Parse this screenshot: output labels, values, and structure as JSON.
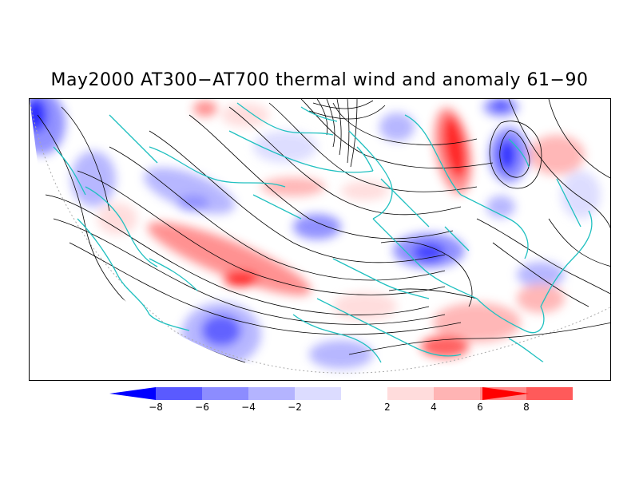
{
  "title": "May2000 AT300−AT700 thermal wind and anomaly 61−90",
  "colorbar": {
    "labels": [
      "−8",
      "−6",
      "−4",
      "−2",
      "2",
      "4",
      "6",
      "8"
    ],
    "colors": [
      "#0000ff",
      "#5a5aff",
      "#8c8cff",
      "#b4b4ff",
      "#dcdcff",
      "#ffffff",
      "#ffdcdc",
      "#ffb4b4",
      "#ff8c8c",
      "#ff5a5a",
      "#ff0000"
    ]
  },
  "map": {
    "projection": "polar stereographic (northern hemisphere)",
    "coastline_color": "#20c0c0",
    "streamline_color": "#000000",
    "positive_color": "#ff0000",
    "negative_color": "#0000ff"
  }
}
